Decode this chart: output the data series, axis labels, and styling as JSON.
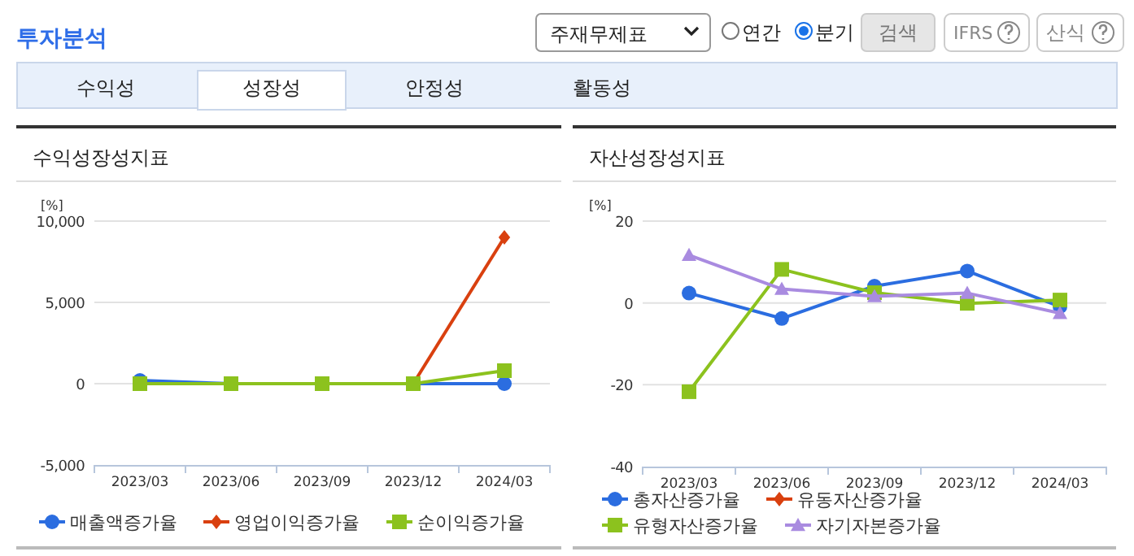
{
  "chart_data": [
    {
      "type": "other",
      "title": "투자분석",
      "annotations": [
        "주재무제표",
        "연간",
        "분기",
        "검색",
        "IFRS",
        "산식",
        "수익성",
        "성장성",
        "안정성",
        "활동성"
      ]
    },
    {
      "type": "line",
      "title": "수익성장성지표",
      "ylabel": "[%]",
      "categories": [
        "2023/03",
        "2023/06",
        "2023/09",
        "2023/12",
        "2024/03"
      ],
      "series": [
        {
          "name": "매출액증가율",
          "color": "#2b6de0",
          "marker": "circle",
          "values": [
            200,
            0,
            0,
            0,
            0
          ]
        },
        {
          "name": "영업이익증가율",
          "color": "#d9400f",
          "marker": "diamond",
          "values": [
            null,
            null,
            null,
            0,
            9000
          ]
        },
        {
          "name": "순이익증가율",
          "color": "#8cc21e",
          "marker": "square",
          "values": [
            0,
            0,
            0,
            0,
            800
          ]
        }
      ],
      "ylim": [
        -5000,
        10000
      ],
      "yticks": [
        {
          "value": -5000,
          "label": "-5,000"
        },
        {
          "value": 0,
          "label": "0"
        },
        {
          "value": 5000,
          "label": "5,000"
        },
        {
          "value": 10000,
          "label": "10,000"
        }
      ],
      "grid": "y",
      "legend": "bottom"
    },
    {
      "type": "line",
      "title": "자산성장성지표",
      "ylabel": "[%]",
      "categories": [
        "2023/03",
        "2023/06",
        "2023/09",
        "2023/12",
        "2024/03"
      ],
      "series": [
        {
          "name": "총자산증가율",
          "color": "#2b6de0",
          "marker": "circle",
          "values": [
            2.4,
            -3.8,
            4.1,
            7.8,
            -0.9
          ]
        },
        {
          "name": "유동자산증가율",
          "color": "#d9400f",
          "marker": "diamond",
          "values": [
            null,
            null,
            null,
            null,
            null
          ]
        },
        {
          "name": "유형자산증가율",
          "color": "#8cc21e",
          "marker": "square",
          "values": [
            -21.7,
            8.2,
            2.5,
            -0.1,
            0.7
          ]
        },
        {
          "name": "자기자본증가율",
          "color": "#a98be0",
          "marker": "triangle",
          "values": [
            11.7,
            3.4,
            1.6,
            2.4,
            -2.5
          ]
        }
      ],
      "ylim": [
        -40,
        20
      ],
      "yticks": [
        -40,
        -20,
        0,
        20
      ],
      "grid": "y",
      "legend": "bottom"
    }
  ]
}
